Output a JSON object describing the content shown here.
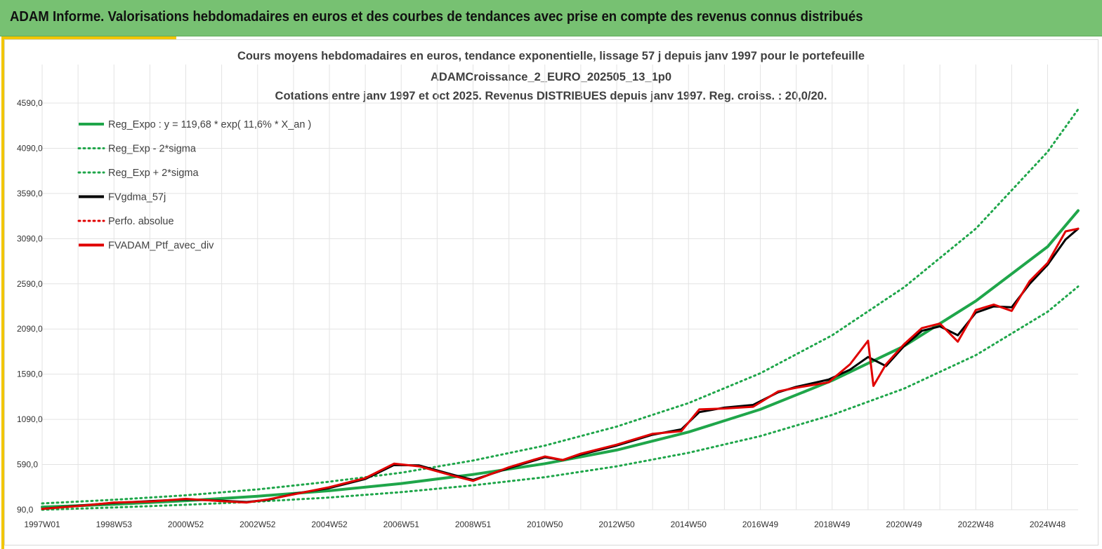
{
  "banner": {
    "title": "ADAM Informe. Valorisations hebdomadaires en euros et des courbes de tendances avec prise en compte des revenus connus distribués"
  },
  "colors": {
    "banner_bg": "#77c172",
    "accent": "#f2c600",
    "trend": "#1fa64a",
    "smoothed": "#000000",
    "portfolio": "#e00000",
    "grid": "#e3e3e3"
  },
  "chart_data": {
    "type": "line",
    "title_lines": [
      "Cours moyens hebdomadaires  en euros, tendance exponentielle, lissage 57 j depuis janv 1997 pour le portefeuille",
      "ADAMCroissance_2_EURO_202505_13_1p0",
      "Cotations  entre janv 1997 et oct 2025. Revenus DISTRIBUES depuis janv 1997. Reg. croiss. : 20,0/20."
    ],
    "xlabel": "",
    "ylabel": "",
    "x_tick_labels": [
      "1997W01",
      "1998W53",
      "2000W52",
      "2002W52",
      "2004W52",
      "2006W51",
      "2008W51",
      "2010W50",
      "2012W50",
      "2014W50",
      "2016W49",
      "2018W49",
      "2020W49",
      "2022W48",
      "2024W48"
    ],
    "x_tick_years": [
      1997.0,
      1999.0,
      2001.0,
      2003.0,
      2005.0,
      2007.0,
      2009.0,
      2011.0,
      2013.0,
      2015.0,
      2017.0,
      2019.0,
      2021.0,
      2023.0,
      2025.0
    ],
    "x_range": [
      1997.0,
      2025.85
    ],
    "y_tick_labels": [
      "90,0",
      "590,0",
      "1090,0",
      "1590,0",
      "2090,0",
      "2590,0",
      "3090,0",
      "3590,0",
      "4090,0",
      "4590,0"
    ],
    "y_range": [
      90,
      4590
    ],
    "grid": true,
    "legend_position": "top-left",
    "legend": [
      {
        "label": "Reg_Expo : y = 119,68 * exp( 11,6% *  X_an )",
        "color": "#1fa64a",
        "style": "solid-thick"
      },
      {
        "label": "Reg_Exp - 2*sigma",
        "color": "#1fa64a",
        "style": "dotted"
      },
      {
        "label": "Reg_Exp + 2*sigma",
        "color": "#1fa64a",
        "style": "dotted"
      },
      {
        "label": "FVgdma_57j",
        "color": "#000000",
        "style": "solid-thick"
      },
      {
        "label": "Perfo. absolue",
        "color": "#e00000",
        "style": "dotted"
      },
      {
        "label": "FVADAM_Ptf_avec_div",
        "color": "#e00000",
        "style": "solid-thick"
      }
    ],
    "series": [
      {
        "name": "Reg_Expo : y = 119,68 * exp( 11,6% *  X_an )",
        "x": [
          1997.0,
          1999.0,
          2001.0,
          2003.0,
          2005.0,
          2007.0,
          2009.0,
          2011.0,
          2013.0,
          2015.0,
          2017.0,
          2019.0,
          2021.0,
          2023.0,
          2025.0,
          2025.85
        ],
        "values": [
          120,
          150,
          190,
          240,
          300,
          380,
          480,
          600,
          750,
          950,
          1200,
          1520,
          1900,
          2400,
          3000,
          3400
        ]
      },
      {
        "name": "Reg_Exp - 2*sigma",
        "x": [
          1997.0,
          1999.0,
          2001.0,
          2003.0,
          2005.0,
          2007.0,
          2009.0,
          2011.0,
          2013.0,
          2015.0,
          2017.0,
          2019.0,
          2021.0,
          2023.0,
          2025.0,
          2025.85
        ],
        "values": [
          90,
          115,
          145,
          180,
          225,
          285,
          360,
          450,
          570,
          720,
          905,
          1140,
          1430,
          1800,
          2280,
          2560
        ]
      },
      {
        "name": "Reg_Exp + 2*sigma",
        "x": [
          1997.0,
          1999.0,
          2001.0,
          2003.0,
          2005.0,
          2007.0,
          2009.0,
          2011.0,
          2013.0,
          2015.0,
          2017.0,
          2019.0,
          2021.0,
          2023.0,
          2025.0,
          2025.85
        ],
        "values": [
          160,
          200,
          250,
          315,
          400,
          500,
          635,
          800,
          1010,
          1270,
          1600,
          2020,
          2550,
          3200,
          4050,
          4520
        ]
      },
      {
        "name": "FVgdma_57j",
        "x": [
          1997.0,
          1998.0,
          1999.0,
          2000.0,
          2001.0,
          2002.0,
          2002.7,
          2003.3,
          2004.0,
          2005.0,
          2006.0,
          2006.8,
          2007.5,
          2008.5,
          2009.0,
          2010.0,
          2011.0,
          2011.5,
          2012.0,
          2013.0,
          2014.0,
          2014.8,
          2015.3,
          2016.0,
          2016.8,
          2017.5,
          2018.0,
          2018.9,
          2019.5,
          2020.0,
          2020.5,
          2021.0,
          2021.5,
          2022.0,
          2022.5,
          2023.0,
          2023.5,
          2024.0,
          2024.5,
          2025.0,
          2025.5,
          2025.85
        ],
        "values": [
          100,
          135,
          165,
          185,
          205,
          190,
          175,
          200,
          265,
          330,
          430,
          585,
          580,
          470,
          420,
          550,
          670,
          640,
          700,
          800,
          920,
          980,
          1170,
          1220,
          1250,
          1390,
          1450,
          1530,
          1640,
          1780,
          1680,
          1900,
          2070,
          2120,
          2020,
          2270,
          2340,
          2330,
          2590,
          2800,
          3080,
          3200
        ]
      },
      {
        "name": "FVADAM_Ptf_avec_div",
        "x": [
          1997.0,
          1998.0,
          1999.0,
          2000.0,
          2001.0,
          2002.0,
          2002.7,
          2003.3,
          2004.0,
          2005.0,
          2006.0,
          2006.8,
          2007.5,
          2008.5,
          2009.0,
          2010.0,
          2011.0,
          2011.5,
          2012.0,
          2013.0,
          2014.0,
          2014.8,
          2015.3,
          2016.0,
          2016.8,
          2017.5,
          2018.0,
          2018.9,
          2019.5,
          2020.0,
          2020.15,
          2020.5,
          2021.0,
          2021.5,
          2022.0,
          2022.5,
          2023.0,
          2023.5,
          2024.0,
          2024.5,
          2025.0,
          2025.5,
          2025.85
        ],
        "values": [
          100,
          130,
          170,
          180,
          210,
          185,
          170,
          205,
          260,
          340,
          440,
          600,
          570,
          460,
          410,
          560,
          680,
          640,
          710,
          810,
          930,
          960,
          1200,
          1210,
          1230,
          1400,
          1440,
          1500,
          1700,
          1960,
          1460,
          1700,
          1920,
          2100,
          2150,
          1950,
          2300,
          2360,
          2290,
          2620,
          2820,
          3170,
          3200
        ]
      }
    ]
  }
}
